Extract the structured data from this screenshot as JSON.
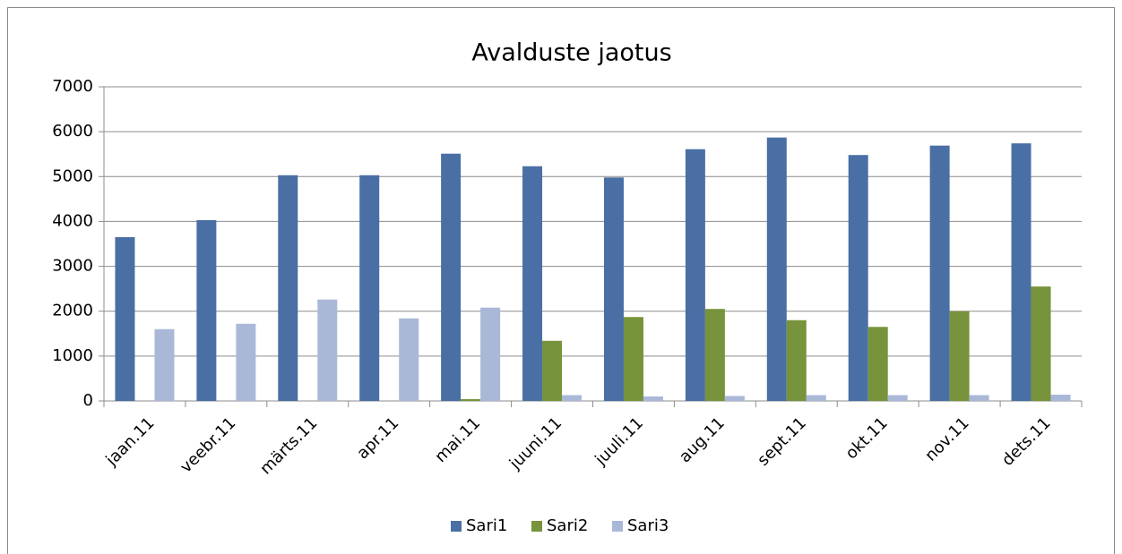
{
  "chart_data": {
    "type": "bar",
    "title": "Avalduste jaotus",
    "categories": [
      "jaan.11",
      "veebr.11",
      "märts.11",
      "apr.11",
      "mai.11",
      "juuni.11",
      "juuli.11",
      "aug.11",
      "sept.11",
      "okt.11",
      "nov.11",
      "dets.11"
    ],
    "series": [
      {
        "name": "Sari1",
        "color": "#4a6fa5",
        "values": [
          3650,
          4030,
          5030,
          5030,
          5510,
          5230,
          4980,
          5610,
          5870,
          5480,
          5690,
          5740
        ]
      },
      {
        "name": "Sari2",
        "color": "#77933c",
        "values": [
          0,
          0,
          0,
          0,
          40,
          1340,
          1870,
          2050,
          1800,
          1650,
          2000,
          2550
        ]
      },
      {
        "name": "Sari3",
        "color": "#aab8d8",
        "values": [
          1600,
          1720,
          2260,
          1840,
          2080,
          130,
          100,
          110,
          130,
          130,
          130,
          140
        ]
      }
    ],
    "ylim": [
      0,
      7000
    ],
    "yticks": [
      0,
      1000,
      2000,
      3000,
      4000,
      5000,
      6000,
      7000
    ],
    "grid": true,
    "legend": "bottom"
  }
}
